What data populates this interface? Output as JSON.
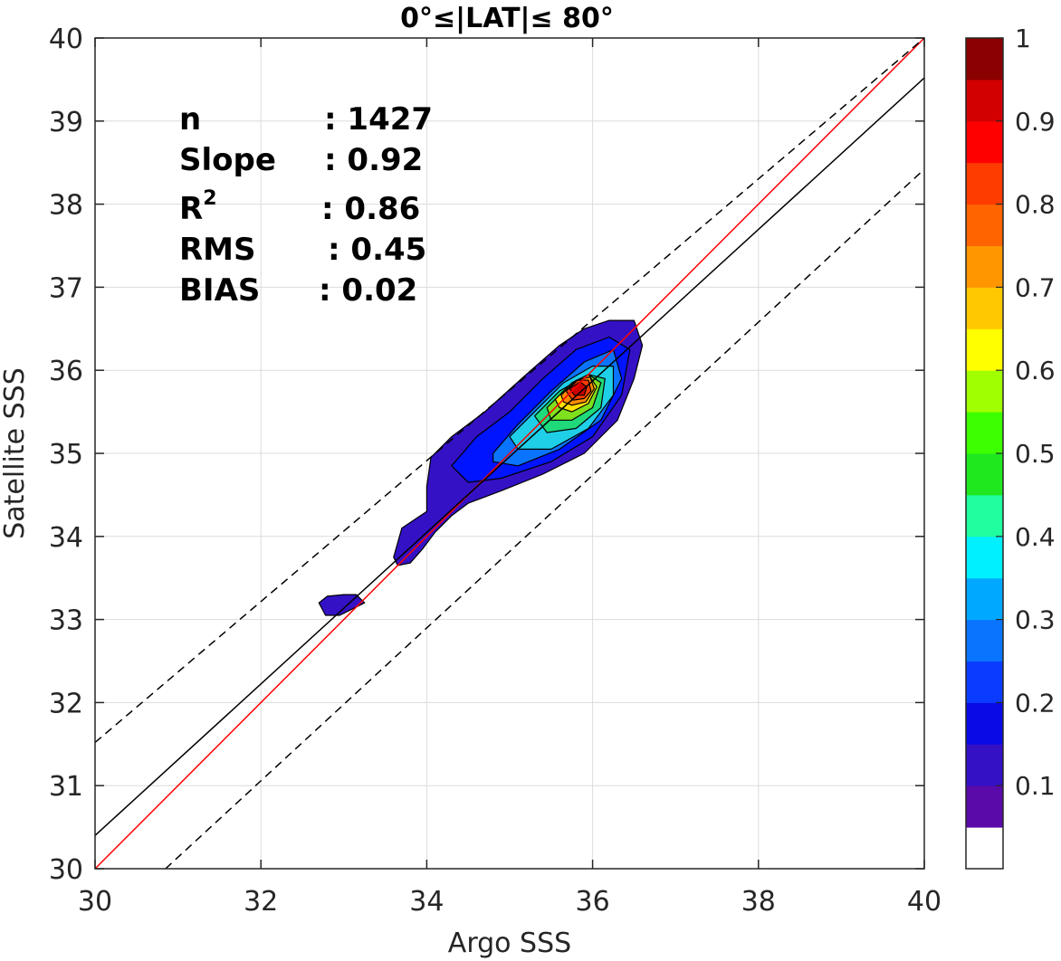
{
  "chart_data": {
    "type": "contour",
    "title": "0°≤|LAT|≤ 80°",
    "xlabel": "Argo SSS",
    "ylabel": "Satellite SSS",
    "xlim": [
      30,
      40
    ],
    "ylim": [
      30,
      40
    ],
    "x_ticks": [
      "30",
      "32",
      "34",
      "36",
      "38",
      "40"
    ],
    "y_ticks": [
      "30",
      "31",
      "32",
      "33",
      "34",
      "35",
      "36",
      "37",
      "38",
      "39",
      "40"
    ],
    "grid": true,
    "stats": [
      {
        "label": "n",
        "value": ": 1427"
      },
      {
        "label": "Slope",
        "value": ": 0.92"
      },
      {
        "label": "R",
        "sup": "2",
        "value": ": 0.86"
      },
      {
        "label": "RMS",
        "value": ": 0.45"
      },
      {
        "label": "BIAS",
        "value": ": 0.02"
      }
    ],
    "lines": [
      {
        "kind": "one-to-one",
        "color": "#ff0000",
        "style": "solid",
        "points": [
          [
            30,
            30
          ],
          [
            40,
            40
          ]
        ]
      },
      {
        "kind": "regression",
        "color": "#000000",
        "style": "solid",
        "points": [
          [
            30,
            30.4
          ],
          [
            40,
            39.52
          ]
        ]
      },
      {
        "kind": "upper-bound",
        "color": "#000000",
        "style": "dashed",
        "points": [
          [
            30,
            31.52
          ],
          [
            40,
            40.0
          ]
        ]
      },
      {
        "kind": "lower-bound",
        "color": "#000000",
        "style": "dashed",
        "points": [
          [
            30.85,
            30
          ],
          [
            40,
            38.42
          ]
        ]
      }
    ],
    "contour_levels": [
      {
        "level": 0.05,
        "color": "#3511c5",
        "polygon": [
          [
            34.05,
            34.95
          ],
          [
            34.3,
            35.2
          ],
          [
            34.7,
            35.5
          ],
          [
            35.2,
            35.95
          ],
          [
            35.6,
            36.3
          ],
          [
            35.9,
            36.5
          ],
          [
            36.2,
            36.6
          ],
          [
            36.5,
            36.6
          ],
          [
            36.6,
            36.3
          ],
          [
            36.5,
            35.9
          ],
          [
            36.3,
            35.4
          ],
          [
            35.9,
            35.0
          ],
          [
            35.4,
            34.75
          ],
          [
            34.9,
            34.55
          ],
          [
            34.5,
            34.4
          ],
          [
            34.3,
            34.25
          ],
          [
            34.1,
            34.05
          ],
          [
            33.95,
            33.85
          ],
          [
            33.8,
            33.68
          ],
          [
            33.65,
            33.65
          ],
          [
            33.6,
            33.75
          ],
          [
            33.7,
            34.1
          ],
          [
            33.85,
            34.2
          ],
          [
            34.0,
            34.3
          ],
          [
            34.0,
            34.6
          ]
        ]
      },
      {
        "level": 0.05,
        "color": "#3511c5",
        "polygon": [
          [
            32.7,
            33.2
          ],
          [
            32.8,
            33.28
          ],
          [
            33.0,
            33.3
          ],
          [
            33.15,
            33.3
          ],
          [
            33.25,
            33.2
          ],
          [
            33.15,
            33.15
          ],
          [
            32.95,
            33.05
          ],
          [
            32.78,
            33.05
          ]
        ]
      },
      {
        "level": 0.1,
        "color": "#0014ff",
        "polygon": [
          [
            34.3,
            34.85
          ],
          [
            34.6,
            35.2
          ],
          [
            35.0,
            35.5
          ],
          [
            35.4,
            35.9
          ],
          [
            35.8,
            36.25
          ],
          [
            36.2,
            36.4
          ],
          [
            36.45,
            36.25
          ],
          [
            36.35,
            35.7
          ],
          [
            36.0,
            35.2
          ],
          [
            35.5,
            34.9
          ],
          [
            34.9,
            34.7
          ],
          [
            34.5,
            34.65
          ]
        ]
      },
      {
        "level": 0.2,
        "color": "#0a74ff",
        "polygon": [
          [
            34.8,
            35.0
          ],
          [
            35.1,
            35.35
          ],
          [
            35.5,
            35.75
          ],
          [
            35.9,
            36.1
          ],
          [
            36.25,
            36.25
          ],
          [
            36.35,
            35.9
          ],
          [
            36.1,
            35.4
          ],
          [
            35.6,
            35.05
          ],
          [
            35.1,
            34.85
          ],
          [
            34.8,
            34.9
          ]
        ]
      },
      {
        "level": 0.3,
        "color": "#1fcfe8",
        "polygon": [
          [
            35.0,
            35.2
          ],
          [
            35.3,
            35.5
          ],
          [
            35.65,
            35.85
          ],
          [
            36.0,
            36.05
          ],
          [
            36.25,
            36.05
          ],
          [
            36.25,
            35.7
          ],
          [
            35.95,
            35.3
          ],
          [
            35.5,
            35.05
          ],
          [
            35.1,
            35.05
          ]
        ]
      },
      {
        "level": 0.4,
        "color": "#1fd97a",
        "polygon": [
          [
            35.3,
            35.45
          ],
          [
            35.6,
            35.75
          ],
          [
            35.95,
            35.95
          ],
          [
            36.15,
            35.9
          ],
          [
            36.1,
            35.55
          ],
          [
            35.8,
            35.3
          ],
          [
            35.45,
            35.25
          ]
        ]
      },
      {
        "level": 0.5,
        "color": "#7fe01e",
        "polygon": [
          [
            35.45,
            35.55
          ],
          [
            35.7,
            35.8
          ],
          [
            35.95,
            35.95
          ],
          [
            36.1,
            35.85
          ],
          [
            36.0,
            35.55
          ],
          [
            35.75,
            35.4
          ],
          [
            35.5,
            35.4
          ]
        ]
      },
      {
        "level": 0.6,
        "color": "#ffdf00",
        "polygon": [
          [
            35.55,
            35.65
          ],
          [
            35.75,
            35.85
          ],
          [
            35.95,
            35.95
          ],
          [
            36.05,
            35.8
          ],
          [
            35.95,
            35.6
          ],
          [
            35.75,
            35.5
          ],
          [
            35.6,
            35.55
          ]
        ]
      },
      {
        "level": 0.7,
        "color": "#ff8c00",
        "polygon": [
          [
            35.62,
            35.7
          ],
          [
            35.8,
            35.88
          ],
          [
            35.97,
            35.92
          ],
          [
            36.02,
            35.78
          ],
          [
            35.92,
            35.62
          ],
          [
            35.75,
            35.58
          ],
          [
            35.65,
            35.62
          ]
        ]
      },
      {
        "level": 0.8,
        "color": "#ff3c00",
        "polygon": [
          [
            35.68,
            35.75
          ],
          [
            35.82,
            35.88
          ],
          [
            35.95,
            35.88
          ],
          [
            35.98,
            35.75
          ],
          [
            35.9,
            35.66
          ],
          [
            35.76,
            35.64
          ]
        ]
      },
      {
        "level": 0.9,
        "color": "#cc0000",
        "polygon": [
          [
            35.72,
            35.78
          ],
          [
            35.85,
            35.86
          ],
          [
            35.93,
            35.8
          ],
          [
            35.9,
            35.7
          ],
          [
            35.78,
            35.7
          ]
        ]
      }
    ],
    "colorbar": {
      "ticks": [
        "0.1",
        "0.2",
        "0.3",
        "0.4",
        "0.5",
        "0.6",
        "0.7",
        "0.8",
        "0.9",
        "1"
      ],
      "colors": [
        "#ffffff",
        "#5a0aa8",
        "#3511c5",
        "#0a0ae6",
        "#0a3cff",
        "#0a74ff",
        "#00a8ff",
        "#00f0ff",
        "#1fffa0",
        "#1fe81f",
        "#3cff00",
        "#a0ff00",
        "#ffff00",
        "#ffc800",
        "#ff9600",
        "#ff6400",
        "#ff3c00",
        "#ff0000",
        "#d20000",
        "#8b0000"
      ]
    }
  }
}
